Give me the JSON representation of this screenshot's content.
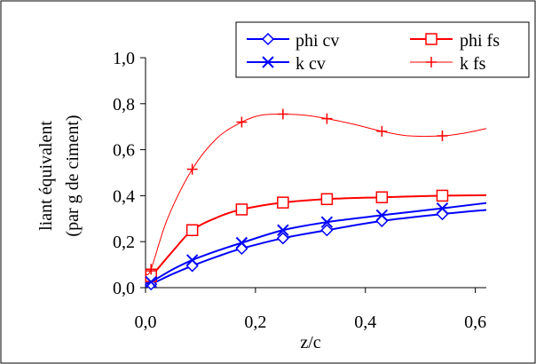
{
  "chart_data": {
    "type": "line",
    "title": "",
    "xlabel": "z/c",
    "ylabel_line1": "liant équivalent",
    "ylabel_line2": "(par g de ciment)",
    "xlim": [
      0,
      0.62
    ],
    "ylim": [
      0,
      1.0
    ],
    "x_ticks": [
      0.0,
      0.2,
      0.4,
      0.6
    ],
    "x_tick_labels": [
      "0,0",
      "0,2",
      "0,4",
      "0,6"
    ],
    "y_ticks": [
      0.0,
      0.2,
      0.4,
      0.6,
      0.8,
      1.0
    ],
    "y_tick_labels": [
      "0,0",
      "0,2",
      "0,4",
      "0,6",
      "0,8",
      "1,0"
    ],
    "grid": false,
    "legend_position": "top-right",
    "series": [
      {
        "name": "phi cv",
        "color": "#0000ff",
        "marker": "diamond",
        "marker_x": [
          0.01,
          0.085,
          0.175,
          0.25,
          0.33,
          0.43,
          0.54
        ],
        "marker_y": [
          0.015,
          0.095,
          0.17,
          0.215,
          0.25,
          0.29,
          0.32
        ],
        "curve_x": [
          0.0,
          0.01,
          0.05,
          0.085,
          0.13,
          0.175,
          0.25,
          0.33,
          0.43,
          0.54,
          0.62
        ],
        "curve_y": [
          0.008,
          0.015,
          0.06,
          0.095,
          0.135,
          0.17,
          0.215,
          0.25,
          0.29,
          0.32,
          0.338
        ]
      },
      {
        "name": "phi fs",
        "color": "#ff0000",
        "marker": "square",
        "marker_x": [
          0.01,
          0.085,
          0.175,
          0.25,
          0.33,
          0.43,
          0.54
        ],
        "marker_y": [
          0.05,
          0.25,
          0.34,
          0.37,
          0.385,
          0.393,
          0.4
        ],
        "curve_x": [
          0.0,
          0.01,
          0.05,
          0.085,
          0.13,
          0.175,
          0.25,
          0.33,
          0.43,
          0.54,
          0.62
        ],
        "curve_y": [
          0.045,
          0.05,
          0.16,
          0.25,
          0.305,
          0.34,
          0.37,
          0.385,
          0.393,
          0.4,
          0.402
        ]
      },
      {
        "name": "k cv",
        "color": "#0000ff",
        "marker": "x",
        "marker_x": [
          0.01,
          0.085,
          0.175,
          0.25,
          0.33,
          0.43,
          0.54
        ],
        "marker_y": [
          0.025,
          0.12,
          0.195,
          0.25,
          0.285,
          0.315,
          0.345
        ],
        "curve_x": [
          0.0,
          0.01,
          0.05,
          0.085,
          0.13,
          0.175,
          0.25,
          0.33,
          0.43,
          0.54,
          0.62
        ],
        "curve_y": [
          0.02,
          0.025,
          0.08,
          0.12,
          0.16,
          0.195,
          0.25,
          0.285,
          0.315,
          0.345,
          0.368
        ]
      },
      {
        "name": "k fs",
        "color": "#ff0000",
        "marker": "plus",
        "marker_x": [
          0.01,
          0.085,
          0.175,
          0.25,
          0.33,
          0.43,
          0.54
        ],
        "marker_y": [
          0.08,
          0.515,
          0.72,
          0.755,
          0.735,
          0.68,
          0.66
        ],
        "curve_x": [
          0.0,
          0.01,
          0.04,
          0.085,
          0.13,
          0.175,
          0.21,
          0.25,
          0.29,
          0.33,
          0.38,
          0.43,
          0.48,
          0.54,
          0.58,
          0.62
        ],
        "curve_y": [
          0.06,
          0.08,
          0.3,
          0.515,
          0.65,
          0.72,
          0.75,
          0.755,
          0.75,
          0.735,
          0.71,
          0.68,
          0.66,
          0.66,
          0.672,
          0.692
        ]
      }
    ]
  }
}
